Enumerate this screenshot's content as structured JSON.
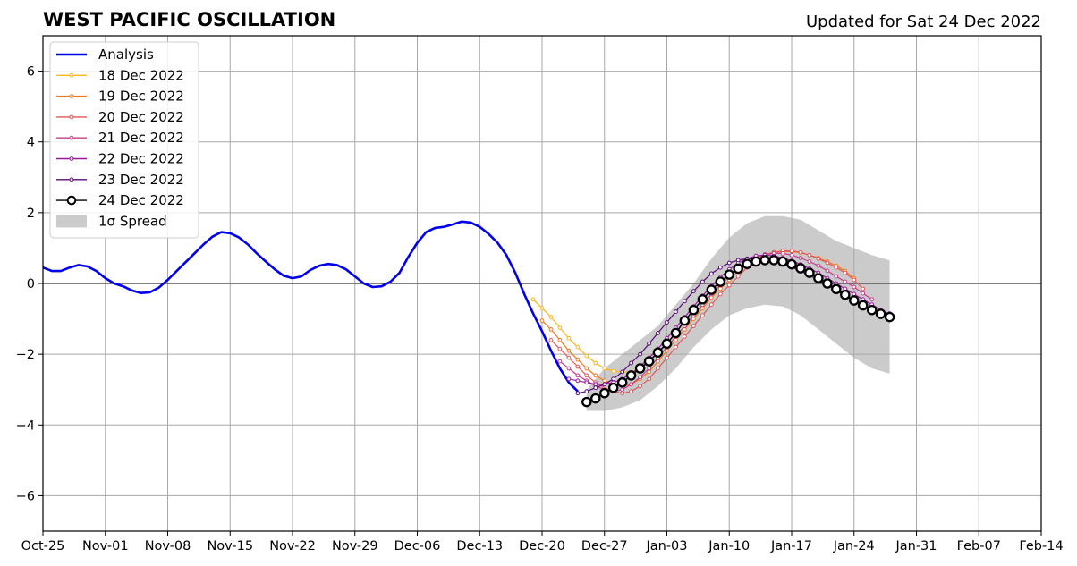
{
  "chart_data": {
    "type": "line",
    "title": "WEST PACIFIC OSCILLATION",
    "subtitle": "Updated for Sat 24 Dec 2022",
    "x_ticks": [
      "Oct-25",
      "Nov-01",
      "Nov-08",
      "Nov-15",
      "Nov-22",
      "Nov-29",
      "Dec-06",
      "Dec-13",
      "Dec-20",
      "Dec-27",
      "Jan-03",
      "Jan-10",
      "Jan-17",
      "Jan-24",
      "Jan-31",
      "Feb-07",
      "Feb-14"
    ],
    "x_tick_days": [
      0,
      7,
      14,
      21,
      28,
      35,
      42,
      49,
      56,
      63,
      70,
      77,
      84,
      91,
      98,
      105,
      112
    ],
    "y_ticks": [
      "−6",
      "−4",
      "−2",
      "0",
      "2",
      "4",
      "6"
    ],
    "y_tick_values": [
      -6,
      -4,
      -2,
      0,
      2,
      4,
      6
    ],
    "xlim": [
      "2022-10-25",
      "2023-02-14"
    ],
    "ylim": [
      -7,
      7
    ],
    "grid": true,
    "legend_position": "top-left",
    "spread": {
      "name": "1σ Spread",
      "color": "#cbcbcb",
      "x": [
        "2022-12-25",
        "2022-12-27",
        "2022-12-29",
        "2022-12-31",
        "2023-01-02",
        "2023-01-04",
        "2023-01-06",
        "2023-01-08",
        "2023-01-10",
        "2023-01-12",
        "2023-01-14",
        "2023-01-16",
        "2023-01-18",
        "2023-01-20",
        "2023-01-22",
        "2023-01-24",
        "2023-01-26",
        "2023-01-28"
      ],
      "upper": [
        -3.0,
        -2.4,
        -2.0,
        -1.6,
        -1.2,
        -0.6,
        0.0,
        0.7,
        1.3,
        1.7,
        1.9,
        1.9,
        1.8,
        1.5,
        1.2,
        1.0,
        0.8,
        0.65
      ],
      "lower": [
        -3.6,
        -3.6,
        -3.5,
        -3.3,
        -2.9,
        -2.4,
        -1.8,
        -1.3,
        -0.9,
        -0.7,
        -0.6,
        -0.65,
        -0.9,
        -1.3,
        -1.7,
        -2.1,
        -2.4,
        -2.55
      ]
    },
    "series": [
      {
        "name": "Analysis",
        "color": "#0000ee",
        "x": [
          "2022-10-25",
          "2022-10-26",
          "2022-10-27",
          "2022-10-28",
          "2022-10-29",
          "2022-10-30",
          "2022-10-31",
          "2022-11-01",
          "2022-11-02",
          "2022-11-03",
          "2022-11-04",
          "2022-11-05",
          "2022-11-06",
          "2022-11-07",
          "2022-11-08",
          "2022-11-09",
          "2022-11-10",
          "2022-11-11",
          "2022-11-12",
          "2022-11-13",
          "2022-11-14",
          "2022-11-15",
          "2022-11-16",
          "2022-11-17",
          "2022-11-18",
          "2022-11-19",
          "2022-11-20",
          "2022-11-21",
          "2022-11-22",
          "2022-11-23",
          "2022-11-24",
          "2022-11-25",
          "2022-11-26",
          "2022-11-27",
          "2022-11-28",
          "2022-11-29",
          "2022-11-30",
          "2022-12-01",
          "2022-12-02",
          "2022-12-03",
          "2022-12-04",
          "2022-12-05",
          "2022-12-06",
          "2022-12-07",
          "2022-12-08",
          "2022-12-09",
          "2022-12-10",
          "2022-12-11",
          "2022-12-12",
          "2022-12-13",
          "2022-12-14",
          "2022-12-15",
          "2022-12-16",
          "2022-12-17",
          "2022-12-18",
          "2022-12-19",
          "2022-12-20",
          "2022-12-21",
          "2022-12-22",
          "2022-12-23",
          "2022-12-24"
        ],
        "values": [
          0.45,
          0.35,
          0.35,
          0.45,
          0.52,
          0.48,
          0.35,
          0.15,
          0.0,
          -0.08,
          -0.2,
          -0.27,
          -0.25,
          -0.12,
          0.1,
          0.35,
          0.6,
          0.85,
          1.1,
          1.32,
          1.45,
          1.42,
          1.3,
          1.1,
          0.85,
          0.62,
          0.4,
          0.22,
          0.15,
          0.2,
          0.38,
          0.5,
          0.55,
          0.52,
          0.4,
          0.2,
          0.0,
          -0.1,
          -0.08,
          0.05,
          0.3,
          0.75,
          1.15,
          1.45,
          1.57,
          1.6,
          1.67,
          1.75,
          1.72,
          1.6,
          1.4,
          1.15,
          0.8,
          0.3,
          -0.3,
          -0.85,
          -1.35,
          -1.9,
          -2.4,
          -2.8,
          -3.05
        ]
      },
      {
        "name": "18 Dec 2022",
        "color": "#fbb61a",
        "x": [
          "2022-12-19",
          "2022-12-20",
          "2022-12-21",
          "2022-12-22",
          "2022-12-23",
          "2022-12-24",
          "2022-12-25",
          "2022-12-26",
          "2022-12-27",
          "2022-12-28",
          "2022-12-29",
          "2022-12-30"
        ],
        "values": [
          -0.45,
          -0.7,
          -0.95,
          -1.25,
          -1.55,
          -1.8,
          -2.05,
          -2.25,
          -2.4,
          -2.48,
          -2.5,
          -2.5
        ]
      },
      {
        "name": "19 Dec 2022",
        "color": "#f3771d",
        "x": [
          "2022-12-20",
          "2022-12-21",
          "2022-12-22",
          "2022-12-23",
          "2022-12-24",
          "2022-12-25",
          "2022-12-26",
          "2022-12-27",
          "2022-12-28",
          "2022-12-29",
          "2022-12-30",
          "2022-12-31",
          "2023-01-01",
          "2023-01-02",
          "2023-01-03",
          "2023-01-04",
          "2023-01-05",
          "2023-01-06",
          "2023-01-07",
          "2023-01-08",
          "2023-01-09",
          "2023-01-10",
          "2023-01-11",
          "2023-01-12",
          "2023-01-13",
          "2023-01-14",
          "2023-01-15",
          "2023-01-16",
          "2023-01-17",
          "2023-01-18",
          "2023-01-19",
          "2023-01-20",
          "2023-01-21",
          "2023-01-22",
          "2023-01-23",
          "2023-01-24"
        ],
        "values": [
          -1.05,
          -1.3,
          -1.6,
          -1.9,
          -2.15,
          -2.4,
          -2.6,
          -2.75,
          -2.85,
          -2.9,
          -2.85,
          -2.7,
          -2.5,
          -2.2,
          -1.9,
          -1.6,
          -1.3,
          -1.0,
          -0.7,
          -0.4,
          -0.15,
          0.1,
          0.35,
          0.55,
          0.7,
          0.82,
          0.88,
          0.9,
          0.9,
          0.87,
          0.8,
          0.72,
          0.62,
          0.5,
          0.35,
          0.15
        ]
      },
      {
        "name": "20 Dec 2022",
        "color": "#e15759",
        "x": [
          "2022-12-21",
          "2022-12-22",
          "2022-12-23",
          "2022-12-24",
          "2022-12-25",
          "2022-12-26",
          "2022-12-27",
          "2022-12-28",
          "2022-12-29",
          "2022-12-30",
          "2022-12-31",
          "2023-01-01",
          "2023-01-02",
          "2023-01-03",
          "2023-01-04",
          "2023-01-05",
          "2023-01-06",
          "2023-01-07",
          "2023-01-08",
          "2023-01-09",
          "2023-01-10",
          "2023-01-11",
          "2023-01-12",
          "2023-01-13",
          "2023-01-14",
          "2023-01-15",
          "2023-01-16",
          "2023-01-17",
          "2023-01-18",
          "2023-01-19",
          "2023-01-20",
          "2023-01-21",
          "2023-01-22",
          "2023-01-23",
          "2023-01-24",
          "2023-01-25"
        ],
        "values": [
          -1.6,
          -1.85,
          -2.1,
          -2.35,
          -2.6,
          -2.8,
          -2.95,
          -3.05,
          -3.1,
          -3.05,
          -2.9,
          -2.7,
          -2.4,
          -2.1,
          -1.8,
          -1.5,
          -1.2,
          -0.9,
          -0.6,
          -0.3,
          -0.05,
          0.2,
          0.45,
          0.65,
          0.8,
          0.88,
          0.92,
          0.92,
          0.88,
          0.8,
          0.7,
          0.58,
          0.45,
          0.3,
          0.1,
          -0.15
        ]
      },
      {
        "name": "21 Dec 2022",
        "color": "#c53c8c",
        "x": [
          "2022-12-22",
          "2022-12-23",
          "2022-12-24",
          "2022-12-25",
          "2022-12-26",
          "2022-12-27",
          "2022-12-28",
          "2022-12-29",
          "2022-12-30",
          "2022-12-31",
          "2023-01-01",
          "2023-01-02",
          "2023-01-03",
          "2023-01-04",
          "2023-01-05",
          "2023-01-06",
          "2023-01-07",
          "2023-01-08",
          "2023-01-09",
          "2023-01-10",
          "2023-01-11",
          "2023-01-12",
          "2023-01-13",
          "2023-01-14",
          "2023-01-15",
          "2023-01-16",
          "2023-01-17",
          "2023-01-18",
          "2023-01-19",
          "2023-01-20",
          "2023-01-21",
          "2023-01-22",
          "2023-01-23",
          "2023-01-24",
          "2023-01-25",
          "2023-01-26"
        ],
        "values": [
          -2.2,
          -2.4,
          -2.6,
          -2.75,
          -2.9,
          -3.0,
          -3.05,
          -3.0,
          -2.85,
          -2.65,
          -2.4,
          -2.1,
          -1.8,
          -1.5,
          -1.2,
          -0.9,
          -0.6,
          -0.3,
          -0.05,
          0.2,
          0.42,
          0.6,
          0.72,
          0.82,
          0.85,
          0.85,
          0.8,
          0.72,
          0.62,
          0.5,
          0.36,
          0.2,
          0.05,
          -0.1,
          -0.28,
          -0.45
        ]
      },
      {
        "name": "22 Dec 2022",
        "color": "#9c179e",
        "x": [
          "2022-12-23",
          "2022-12-24",
          "2022-12-25",
          "2022-12-26",
          "2022-12-27",
          "2022-12-28",
          "2022-12-29",
          "2022-12-30",
          "2022-12-31",
          "2023-01-01",
          "2023-01-02",
          "2023-01-03",
          "2023-01-04",
          "2023-01-05",
          "2023-01-06",
          "2023-01-07",
          "2023-01-08",
          "2023-01-09",
          "2023-01-10",
          "2023-01-11",
          "2023-01-12",
          "2023-01-13",
          "2023-01-14",
          "2023-01-15",
          "2023-01-16",
          "2023-01-17",
          "2023-01-18",
          "2023-01-19",
          "2023-01-20",
          "2023-01-21",
          "2023-01-22",
          "2023-01-23",
          "2023-01-24",
          "2023-01-25",
          "2023-01-26",
          "2023-01-27"
        ],
        "values": [
          -2.7,
          -2.75,
          -2.8,
          -2.85,
          -2.85,
          -2.8,
          -2.7,
          -2.55,
          -2.35,
          -2.1,
          -1.85,
          -1.55,
          -1.25,
          -0.95,
          -0.65,
          -0.35,
          -0.08,
          0.18,
          0.4,
          0.58,
          0.7,
          0.78,
          0.8,
          0.78,
          0.72,
          0.64,
          0.54,
          0.42,
          0.3,
          0.15,
          0.0,
          -0.15,
          -0.3,
          -0.45,
          -0.6,
          -0.75
        ]
      },
      {
        "name": "23 Dec 2022",
        "color": "#5c087a",
        "x": [
          "2022-12-24",
          "2022-12-25",
          "2022-12-26",
          "2022-12-27",
          "2022-12-28",
          "2022-12-29",
          "2022-12-30",
          "2022-12-31",
          "2023-01-01",
          "2023-01-02",
          "2023-01-03",
          "2023-01-04",
          "2023-01-05",
          "2023-01-06",
          "2023-01-07",
          "2023-01-08",
          "2023-01-09",
          "2023-01-10",
          "2023-01-11",
          "2023-01-12",
          "2023-01-13",
          "2023-01-14",
          "2023-01-15",
          "2023-01-16",
          "2023-01-17",
          "2023-01-18",
          "2023-01-19",
          "2023-01-20",
          "2023-01-21",
          "2023-01-22",
          "2023-01-23",
          "2023-01-24",
          "2023-01-25",
          "2023-01-26",
          "2023-01-27",
          "2023-01-28"
        ],
        "values": [
          -3.1,
          -3.05,
          -2.95,
          -2.85,
          -2.7,
          -2.5,
          -2.25,
          -2.0,
          -1.7,
          -1.4,
          -1.1,
          -0.8,
          -0.5,
          -0.22,
          0.05,
          0.28,
          0.45,
          0.58,
          0.66,
          0.7,
          0.7,
          0.67,
          0.62,
          0.55,
          0.46,
          0.35,
          0.23,
          0.1,
          -0.05,
          -0.2,
          -0.35,
          -0.5,
          -0.62,
          -0.72,
          -0.8,
          -0.85
        ]
      },
      {
        "name": "24 Dec 2022",
        "color": "#000000",
        "x": [
          "2022-12-25",
          "2022-12-26",
          "2022-12-27",
          "2022-12-28",
          "2022-12-29",
          "2022-12-30",
          "2022-12-31",
          "2023-01-01",
          "2023-01-02",
          "2023-01-03",
          "2023-01-04",
          "2023-01-05",
          "2023-01-06",
          "2023-01-07",
          "2023-01-08",
          "2023-01-09",
          "2023-01-10",
          "2023-01-11",
          "2023-01-12",
          "2023-01-13",
          "2023-01-14",
          "2023-01-15",
          "2023-01-16",
          "2023-01-17",
          "2023-01-18",
          "2023-01-19",
          "2023-01-20",
          "2023-01-21",
          "2023-01-22",
          "2023-01-23",
          "2023-01-24",
          "2023-01-25",
          "2023-01-26",
          "2023-01-27",
          "2023-01-28"
        ],
        "values": [
          -3.35,
          -3.25,
          -3.1,
          -2.95,
          -2.8,
          -2.6,
          -2.4,
          -2.2,
          -1.95,
          -1.7,
          -1.4,
          -1.05,
          -0.75,
          -0.45,
          -0.18,
          0.05,
          0.25,
          0.42,
          0.55,
          0.62,
          0.66,
          0.66,
          0.62,
          0.54,
          0.43,
          0.3,
          0.15,
          0.0,
          -0.16,
          -0.32,
          -0.48,
          -0.62,
          -0.75,
          -0.86,
          -0.95
        ]
      }
    ]
  }
}
